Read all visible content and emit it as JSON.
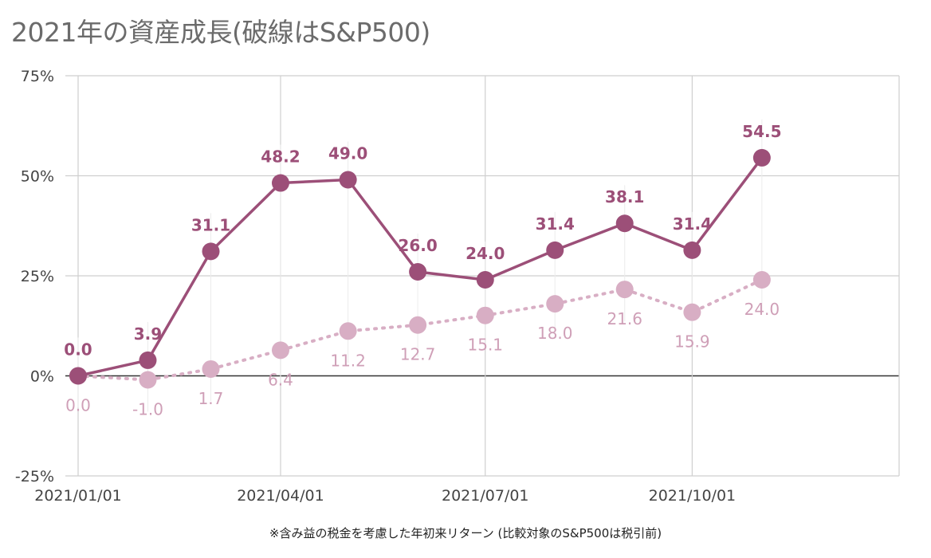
{
  "chart_data": {
    "type": "line",
    "title": "2021年の資産成長(破線はS&P500)",
    "footnote": "※含み益の税金を考慮した年初来リターン (比較対象のS&P500は税引前)",
    "x": [
      "2021/01/01",
      "2021/02/01",
      "2021/03/01",
      "2021/04/01",
      "2021/05/01",
      "2021/06/01",
      "2021/07/01",
      "2021/08/01",
      "2021/09/01",
      "2021/10/01",
      "2021/11/01"
    ],
    "x_ticks": [
      "2021/01/01",
      "2021/04/01",
      "2021/07/01",
      "2021/10/01"
    ],
    "y_ticks": [
      "75%",
      "50%",
      "25%",
      "0%",
      "-25%"
    ],
    "ylim": [
      -25,
      75
    ],
    "series": [
      {
        "style": "solid",
        "color": "#9c4f78",
        "values": [
          0.0,
          3.9,
          31.1,
          48.2,
          49.0,
          26.0,
          24.0,
          31.4,
          38.1,
          31.4,
          54.5
        ],
        "labels": [
          "0.0",
          "3.9",
          "31.1",
          "48.2",
          "49.0",
          "26.0",
          "24.0",
          "31.4",
          "38.1",
          "31.4",
          "54.5"
        ]
      },
      {
        "style": "dotted",
        "color": "#d8aec4",
        "values": [
          0.0,
          -1.0,
          1.7,
          6.4,
          11.2,
          12.7,
          15.1,
          18.0,
          21.6,
          15.9,
          24.0
        ],
        "labels": [
          "0.0",
          "-1.0",
          "1.7",
          "6.4",
          "11.2",
          "12.7",
          "15.1",
          "18.0",
          "21.6",
          "15.9",
          "24.0"
        ]
      }
    ],
    "grid": true,
    "zero_line": true,
    "legend": "none"
  }
}
